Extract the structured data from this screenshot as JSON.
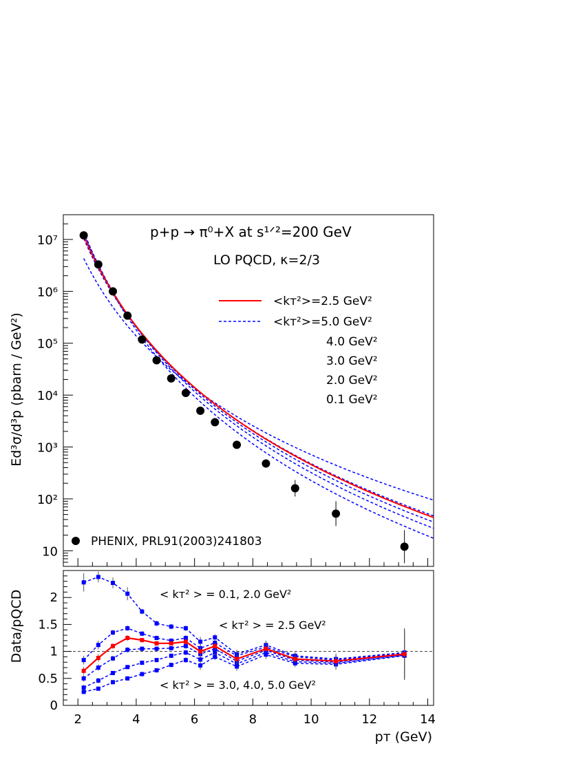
{
  "chart_data": [
    {
      "type": "scatter",
      "subplot": "cross-section",
      "title_line1": "p+p → π⁰+X at s¹ᐟ²=200 GeV",
      "title_line2": "LO PQCD, κ=2/3",
      "ylabel": "Ed³σ/d³p (pbarn / GeV²)",
      "xlabel": "pᴛ (GeV)",
      "xlim": [
        1.5,
        14.2
      ],
      "ylim": [
        5,
        30000000
      ],
      "yscale": "log",
      "y_tick_labels": [
        "10",
        "10²",
        "10³",
        "10⁴",
        "10⁵",
        "10⁶",
        "10⁷"
      ],
      "legend": {
        "solid_label": "<kᴛ²>=2.5 GeV²",
        "dashed_label": "<kᴛ²>=5.0 GeV²",
        "extra_labels": [
          "4.0 GeV²",
          "3.0 GeV²",
          "2.0 GeV²",
          "0.1 GeV²"
        ],
        "data_label": "PHENIX, PRL91(2003)241803"
      },
      "data_points": {
        "x": [
          2.2,
          2.7,
          3.2,
          3.7,
          4.2,
          4.7,
          5.2,
          5.7,
          6.2,
          6.7,
          7.45,
          8.45,
          9.45,
          10.85,
          13.2
        ],
        "y": [
          12000000,
          3300000,
          1000000,
          340000,
          118000,
          47000,
          21000,
          11000,
          5000,
          3000,
          1100,
          480,
          160,
          52,
          12
        ]
      },
      "series": [
        {
          "name": "<kᴛ²>=2.5 GeV²",
          "style": "solid",
          "color": "#ff0000",
          "A": 2300000000,
          "n": 6.7
        },
        {
          "kt2": 5.0,
          "style": "dashed",
          "color": "#0000ff",
          "A": 4500000000,
          "n": 7.3
        },
        {
          "kt2": 4.0,
          "style": "dashed",
          "color": "#0000ff",
          "A": 3600000000,
          "n": 7.05
        },
        {
          "kt2": 3.0,
          "style": "dashed",
          "color": "#0000ff",
          "A": 2800000000,
          "n": 6.85
        },
        {
          "kt2": 2.0,
          "style": "dashed",
          "color": "#0000ff",
          "A": 1900000000,
          "n": 6.6
        },
        {
          "kt2": 0.1,
          "style": "dashed",
          "color": "#0000ff",
          "A": 400000000,
          "n": 5.75
        }
      ]
    },
    {
      "type": "line",
      "subplot": "ratio",
      "ylabel": "Data/pQCD",
      "xlabel": "pᴛ (GeV)",
      "xlim": [
        1.5,
        14.2
      ],
      "ylim": [
        0,
        2.5
      ],
      "x_ticks": [
        2,
        4,
        6,
        8,
        10,
        12,
        14
      ],
      "y_ticks": [
        0,
        0.5,
        1,
        1.5,
        2
      ],
      "y_tick_labels": [
        "0",
        "0.5",
        "1",
        "1.5",
        "2"
      ],
      "reference_line": 1,
      "annotations": [
        {
          "text": "< kᴛ² > = 0.1, 2.0 GeV²",
          "color": "#0000ff"
        },
        {
          "text": "< kᴛ² > = 2.5 GeV²",
          "color": "#ff0000"
        },
        {
          "text": "< kᴛ² > = 3.0, 4.0, 5.0  GeV²",
          "color": "#0000ff"
        }
      ],
      "x": [
        2.2,
        2.7,
        3.2,
        3.7,
        4.2,
        4.7,
        5.2,
        5.7,
        6.2,
        6.7,
        7.45,
        8.45,
        9.45,
        10.85,
        13.2
      ],
      "series": [
        {
          "kt2": 0.1,
          "style": "dashed",
          "color": "#0000ff",
          "values": [
            2.28,
            2.38,
            2.27,
            2.07,
            1.74,
            1.52,
            1.46,
            1.43,
            1.18,
            1.26,
            0.95,
            1.12,
            0.92,
            0.86,
            0.98
          ],
          "errors": [
            0.17,
            0.1,
            0.1,
            0.12,
            0.05,
            0.05,
            0.05,
            0.05,
            0.09,
            0.06,
            0.08,
            0.08,
            0.07,
            0.1,
            0.45
          ]
        },
        {
          "kt2": 2.0,
          "style": "dashed",
          "color": "#0000ff",
          "values": [
            0.84,
            1.12,
            1.35,
            1.43,
            1.33,
            1.25,
            1.2,
            1.25,
            1.06,
            1.16,
            0.92,
            1.08,
            0.9,
            0.84,
            0.97
          ],
          "errors": [
            0.08,
            0.08,
            0.05,
            0.05,
            0.04,
            0.04,
            0.04,
            0.05,
            0.08,
            0.06,
            0.08,
            0.08,
            0.07,
            0.1,
            0.45
          ]
        },
        {
          "name": "<kᴛ²>=2.5 GeV²",
          "style": "solid",
          "color": "#ff0000",
          "values": [
            0.64,
            0.88,
            1.1,
            1.25,
            1.21,
            1.15,
            1.15,
            1.18,
            1.0,
            1.1,
            0.86,
            1.05,
            0.86,
            0.82,
            0.95
          ],
          "errors": [
            0.07,
            0.07,
            0.05,
            0.05,
            0.04,
            0.04,
            0.04,
            0.05,
            0.08,
            0.06,
            0.08,
            0.08,
            0.07,
            0.1,
            0.45
          ]
        },
        {
          "kt2": 3.0,
          "style": "dashed",
          "color": "#0000ff",
          "values": [
            0.5,
            0.7,
            0.87,
            1.03,
            1.05,
            1.05,
            1.06,
            1.1,
            0.95,
            1.05,
            0.82,
            1.02,
            0.84,
            0.8,
            0.94
          ],
          "errors": [
            0.06,
            0.06,
            0.05,
            0.05,
            0.04,
            0.04,
            0.04,
            0.05,
            0.08,
            0.06,
            0.08,
            0.08,
            0.07,
            0.1,
            0.45
          ]
        },
        {
          "kt2": 4.0,
          "style": "dashed",
          "color": "#0000ff",
          "values": [
            0.33,
            0.46,
            0.6,
            0.71,
            0.79,
            0.84,
            0.92,
            0.98,
            0.85,
            0.98,
            0.77,
            0.98,
            0.81,
            0.78,
            0.93
          ],
          "errors": [
            0.05,
            0.05,
            0.04,
            0.04,
            0.04,
            0.04,
            0.04,
            0.05,
            0.08,
            0.06,
            0.08,
            0.08,
            0.07,
            0.1,
            0.45
          ]
        },
        {
          "kt2": 5.0,
          "style": "dashed",
          "color": "#0000ff",
          "values": [
            0.25,
            0.31,
            0.43,
            0.5,
            0.58,
            0.65,
            0.75,
            0.84,
            0.74,
            0.9,
            0.72,
            0.94,
            0.78,
            0.76,
            0.92
          ],
          "errors": [
            0.04,
            0.04,
            0.04,
            0.04,
            0.04,
            0.04,
            0.04,
            0.05,
            0.08,
            0.06,
            0.08,
            0.08,
            0.07,
            0.1,
            0.45
          ]
        }
      ]
    }
  ]
}
